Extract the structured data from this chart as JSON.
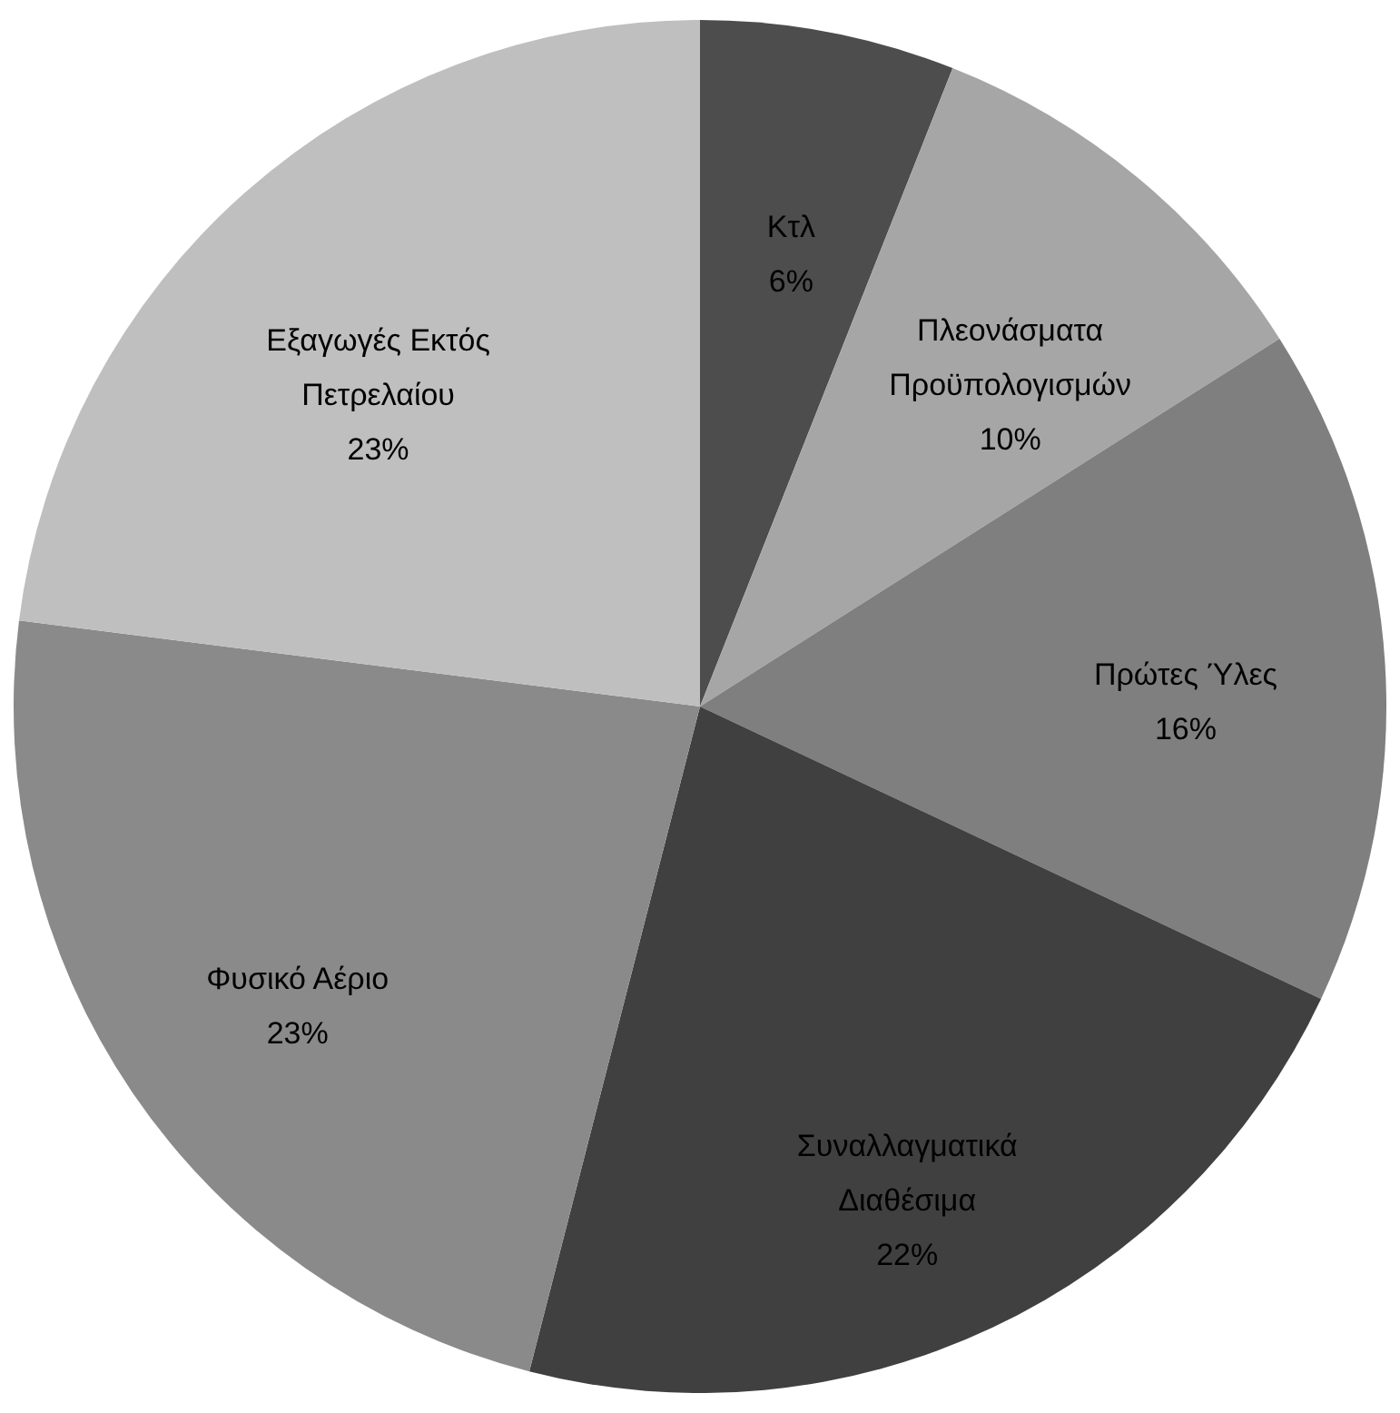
{
  "chart_data": {
    "type": "pie",
    "categories": [
      "Κτλ",
      "Πλεονάσματα Προϋπολογισμών",
      "Πρώτες Ύλες",
      "Συναλλαγματικά Διαθέσιμα",
      "Φυσικό Αέριο",
      "Εξαγωγές Εκτός Πετρελαίου"
    ],
    "values": [
      6,
      10,
      16,
      22,
      23,
      23
    ],
    "colors": [
      "#4d4d4d",
      "#a6a6a6",
      "#7f7f7f",
      "#404040",
      "#8a8a8a",
      "#bfbfbf"
    ],
    "data_labels": true,
    "value_labels": [
      "6%",
      "10%",
      "16%",
      "22%",
      "23%",
      "23%"
    ]
  }
}
